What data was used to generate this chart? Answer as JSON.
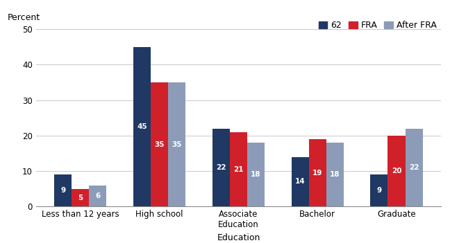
{
  "cat_labels": [
    "Less than 12 years",
    "High school",
    "Associate\nEducation",
    "Bachelor",
    "Graduate"
  ],
  "series": {
    "62": [
      9,
      45,
      22,
      14,
      9
    ],
    "FRA": [
      5,
      35,
      21,
      19,
      20
    ],
    "After FRA": [
      6,
      35,
      18,
      18,
      22
    ]
  },
  "colors": {
    "62": "#1f3864",
    "FRA": "#d0202a",
    "After FRA": "#8c9cb8"
  },
  "legend_labels": [
    "62",
    "FRA",
    "After FRA"
  ],
  "percent_label": "Percent",
  "xlabel": "Education",
  "ylim": [
    0,
    50
  ],
  "yticks": [
    0,
    10,
    20,
    30,
    40,
    50
  ],
  "bar_width": 0.22,
  "label_fontsize": 7.5,
  "axis_fontsize": 9,
  "legend_fontsize": 9,
  "tick_fontsize": 8.5
}
